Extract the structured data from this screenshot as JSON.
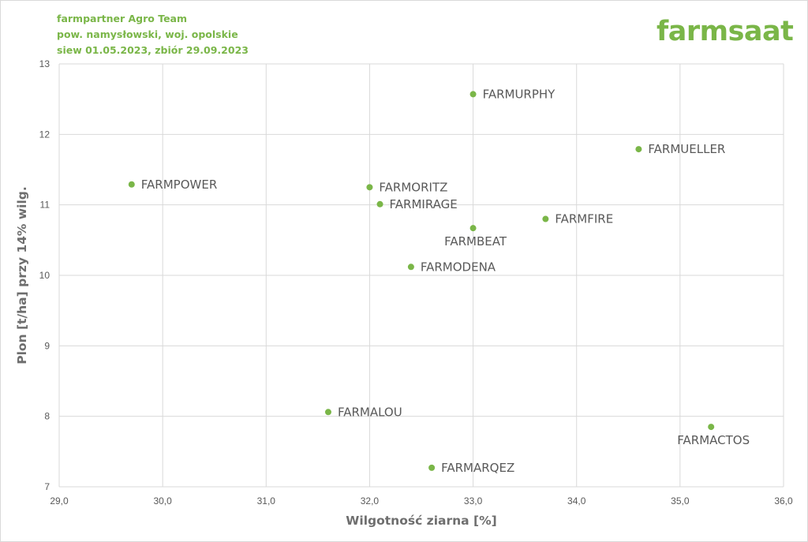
{
  "header": {
    "line1": "farmpartner Agro Team",
    "line2": "pow. namysłowski, woj. opolskie",
    "line3": "siew 01.05.2023, zbiór 29.09.2023"
  },
  "brand": {
    "logo_text": "farmsaat",
    "color": "#7ab648"
  },
  "chart_data": {
    "type": "scatter",
    "xlabel": "Wilgotność ziarna [%]",
    "ylabel": "Plon [t/ha] przy 14% wilg.",
    "xlim": [
      29.0,
      36.0
    ],
    "ylim": [
      7,
      13
    ],
    "x_ticks": [
      29.0,
      30.0,
      31.0,
      32.0,
      33.0,
      34.0,
      35.0,
      36.0
    ],
    "x_tick_labels": [
      "29,0",
      "30,0",
      "31,0",
      "32,0",
      "33,0",
      "34,0",
      "35,0",
      "36,0"
    ],
    "y_ticks": [
      7,
      8,
      9,
      10,
      11,
      12,
      13
    ],
    "y_tick_labels": [
      "7",
      "8",
      "9",
      "10",
      "11",
      "12",
      "13"
    ],
    "grid": true,
    "marker_color": "#7ab648",
    "points": [
      {
        "label": "FARMURPHY",
        "x": 33.0,
        "y": 12.57,
        "label_pos": "right"
      },
      {
        "label": "FARMUELLER",
        "x": 34.6,
        "y": 11.79,
        "label_pos": "right"
      },
      {
        "label": "FARMPOWER",
        "x": 29.7,
        "y": 11.29,
        "label_pos": "right"
      },
      {
        "label": "FARMORITZ",
        "x": 32.0,
        "y": 11.25,
        "label_pos": "right"
      },
      {
        "label": "FARMIRAGE",
        "x": 32.1,
        "y": 11.01,
        "label_pos": "right"
      },
      {
        "label": "FARMFIRE",
        "x": 33.7,
        "y": 10.8,
        "label_pos": "right"
      },
      {
        "label": "FARMBEAT",
        "x": 33.0,
        "y": 10.67,
        "label_pos": "below"
      },
      {
        "label": "FARMODENA",
        "x": 32.4,
        "y": 10.12,
        "label_pos": "right"
      },
      {
        "label": "FARMALOU",
        "x": 31.6,
        "y": 8.06,
        "label_pos": "right"
      },
      {
        "label": "FARMACTOS",
        "x": 35.3,
        "y": 7.85,
        "label_pos": "below"
      },
      {
        "label": "FARMARQEZ",
        "x": 32.6,
        "y": 7.27,
        "label_pos": "right"
      }
    ]
  }
}
